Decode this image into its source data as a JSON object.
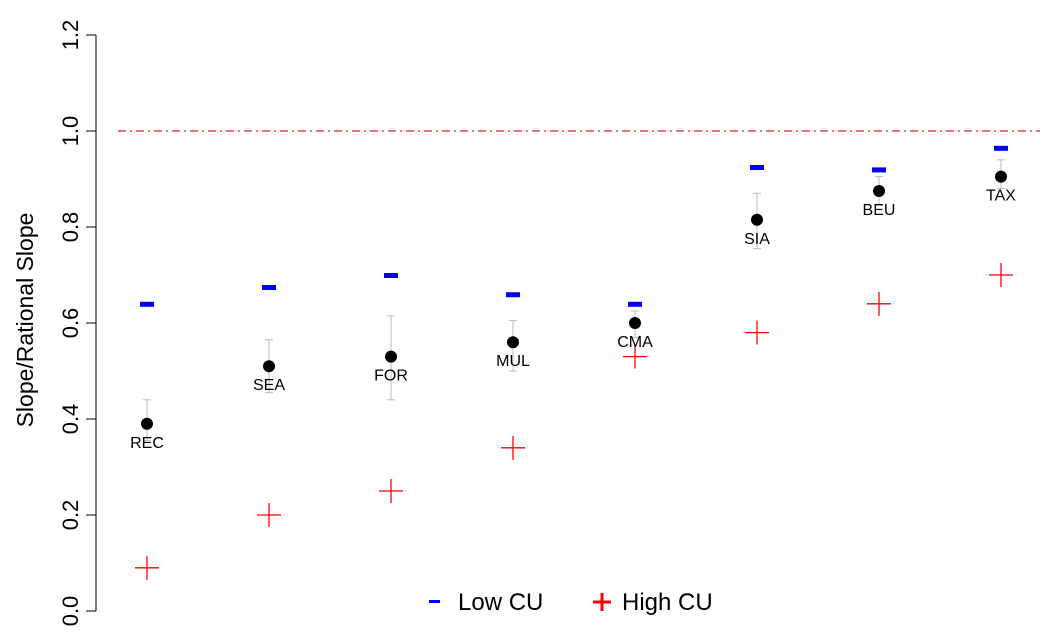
{
  "chart_data": {
    "type": "scatter",
    "ylabel": "Slope/Rational Slope",
    "ylim": [
      0,
      1.2
    ],
    "yticks": [
      "0.0",
      "0.2",
      "0.4",
      "0.6",
      "0.8",
      "1.0",
      "1.2"
    ],
    "reference_line": {
      "y": 1.0,
      "style": "dash-dot",
      "color": "#e41a1c"
    },
    "categories": [
      "REC",
      "SEA",
      "FOR",
      "MUL",
      "CMA",
      "SIA",
      "BEU",
      "TAX"
    ],
    "series": [
      {
        "name": "Low CU",
        "marker": "dash",
        "color": "#0000ff",
        "values": [
          0.64,
          0.675,
          0.7,
          0.66,
          0.64,
          0.925,
          0.92,
          0.965
        ]
      },
      {
        "name": "High CU",
        "marker": "plus",
        "color": "#ff0000",
        "values": [
          0.09,
          0.2,
          0.25,
          0.34,
          0.53,
          0.58,
          0.64,
          0.7
        ]
      },
      {
        "marker": "dot",
        "color": "#000000",
        "values": [
          0.39,
          0.51,
          0.53,
          0.56,
          0.6,
          0.815,
          0.875,
          0.905
        ],
        "error_low": [
          0.355,
          0.455,
          0.44,
          0.5,
          0.57,
          0.755,
          0.845,
          0.88
        ],
        "error_high": [
          0.44,
          0.565,
          0.615,
          0.605,
          0.625,
          0.87,
          0.905,
          0.94
        ]
      }
    ],
    "legend": {
      "placement": "bottom-center",
      "entries": [
        "Low CU",
        "High CU"
      ]
    },
    "grid": false
  }
}
